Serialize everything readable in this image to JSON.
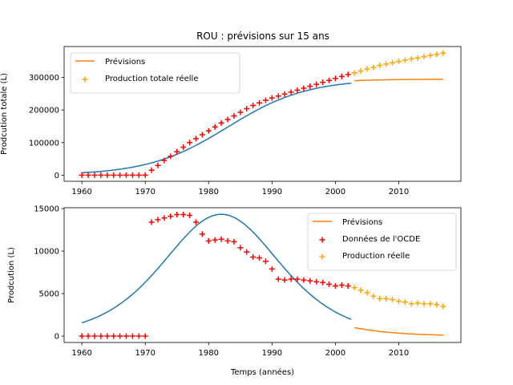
{
  "figure": {
    "title": "ROU : prévisions sur 15 ans"
  },
  "chart_data": [
    {
      "type": "line",
      "xlabel": "",
      "ylabel": "Prodcution totale (L)",
      "xlim": [
        1957.2,
        2019.8
      ],
      "ylim": [
        -18800,
        395000
      ],
      "xticks": [
        1960,
        1970,
        1980,
        1990,
        2000,
        2010
      ],
      "yticks": [
        0,
        100000,
        200000,
        300000
      ],
      "grid": false,
      "legend_position": "top-left",
      "series": [
        {
          "name": "",
          "kind": "line",
          "color": "#1f77b4",
          "function": "logistic",
          "params": {
            "L": 295000,
            "k": 0.16,
            "x0": 1983
          },
          "x_range": [
            1960,
            2002.5
          ]
        },
        {
          "name": "Prévisions",
          "kind": "line",
          "color": "#ff7f0e",
          "x": [
            2003,
            2005,
            2007,
            2009,
            2011,
            2013,
            2015,
            2017
          ],
          "y": [
            290000,
            291500,
            292500,
            293200,
            293700,
            294000,
            294200,
            294300
          ]
        },
        {
          "name": "",
          "kind": "scatter",
          "marker": "+",
          "color": "#ff0000",
          "x": [
            1960,
            1961,
            1962,
            1963,
            1964,
            1965,
            1966,
            1967,
            1968,
            1969,
            1970,
            1971,
            1972,
            1973,
            1974,
            1975,
            1976,
            1977,
            1978,
            1979,
            1980,
            1981,
            1982,
            1983,
            1984,
            1985,
            1986,
            1987,
            1988,
            1989,
            1990,
            1991,
            1992,
            1993,
            1994,
            1995,
            1996,
            1997,
            1998,
            1999,
            2000,
            2001,
            2002
          ],
          "y": [
            0,
            0,
            0,
            0,
            0,
            0,
            0,
            0,
            0,
            0,
            0,
            15000,
            30000,
            45000,
            58000,
            72000,
            86000,
            100000,
            112000,
            124000,
            136000,
            148000,
            160000,
            171000,
            182000,
            193000,
            204000,
            214000,
            222000,
            230000,
            237000,
            243000,
            249000,
            255000,
            261000,
            267000,
            273000,
            279000,
            285000,
            291000,
            297000,
            303000,
            309000
          ]
        },
        {
          "name": "Production totale réelle",
          "kind": "scatter",
          "marker": "+",
          "color": "#ffa500",
          "x": [
            2003,
            2004,
            2005,
            2006,
            2007,
            2008,
            2009,
            2010,
            2011,
            2012,
            2013,
            2014,
            2015,
            2016,
            2017
          ],
          "y": [
            314000,
            320000,
            326000,
            331000,
            337000,
            341000,
            345000,
            349000,
            353000,
            357000,
            360000,
            364000,
            368000,
            371000,
            375000
          ]
        }
      ]
    },
    {
      "type": "line",
      "xlabel": "Temps (années)",
      "ylabel": "Prodcution (L)",
      "xlim": [
        1957.2,
        2019.8
      ],
      "ylim": [
        -750,
        15100
      ],
      "xticks": [
        1960,
        1970,
        1980,
        1990,
        2000,
        2010
      ],
      "yticks": [
        0,
        5000,
        10000,
        15000
      ],
      "grid": false,
      "legend_position": "top-right",
      "series": [
        {
          "name": "",
          "kind": "line",
          "color": "#1f77b4",
          "function": "logistic-derivative",
          "params": {
            "L": 356000,
            "k": 0.161,
            "x0": 1982
          },
          "x_range": [
            1960,
            2002.5
          ]
        },
        {
          "name": "Prévisions",
          "kind": "line",
          "color": "#ff7f0e",
          "x": [
            2003,
            2005,
            2007,
            2009,
            2011,
            2013,
            2015,
            2017
          ],
          "y": [
            1000,
            750,
            550,
            400,
            300,
            220,
            160,
            120
          ]
        },
        {
          "name": "Données de l'OCDE",
          "kind": "scatter",
          "marker": "+",
          "color": "#ff0000",
          "x": [
            1960,
            1961,
            1962,
            1963,
            1964,
            1965,
            1966,
            1967,
            1968,
            1969,
            1970,
            1971,
            1972,
            1973,
            1974,
            1975,
            1976,
            1977,
            1978,
            1979,
            1980,
            1981,
            1982,
            1983,
            1984,
            1985,
            1986,
            1987,
            1988,
            1989,
            1990,
            1991,
            1992,
            1993,
            1994,
            1995,
            1996,
            1997,
            1998,
            1999,
            2000,
            2001,
            2002
          ],
          "y": [
            0,
            0,
            0,
            0,
            0,
            0,
            0,
            0,
            0,
            0,
            0,
            13400,
            13700,
            13900,
            14100,
            14300,
            14300,
            14200,
            13400,
            12000,
            11200,
            11300,
            11400,
            11200,
            11100,
            10400,
            9900,
            9300,
            9200,
            8800,
            7900,
            6700,
            6600,
            6700,
            6700,
            6600,
            6500,
            6400,
            6300,
            6100,
            5900,
            6000,
            5900
          ],
          "note_skip_1970": true
        },
        {
          "name": "Production réelle",
          "kind": "scatter",
          "marker": "+",
          "color": "#ffa500",
          "x": [
            2003,
            2004,
            2005,
            2006,
            2007,
            2008,
            2009,
            2010,
            2011,
            2012,
            2013,
            2014,
            2015,
            2016,
            2017
          ],
          "y": [
            5700,
            5400,
            5100,
            4700,
            4400,
            4400,
            4300,
            4100,
            4000,
            3800,
            3900,
            3800,
            3800,
            3700,
            3500
          ]
        }
      ]
    }
  ]
}
